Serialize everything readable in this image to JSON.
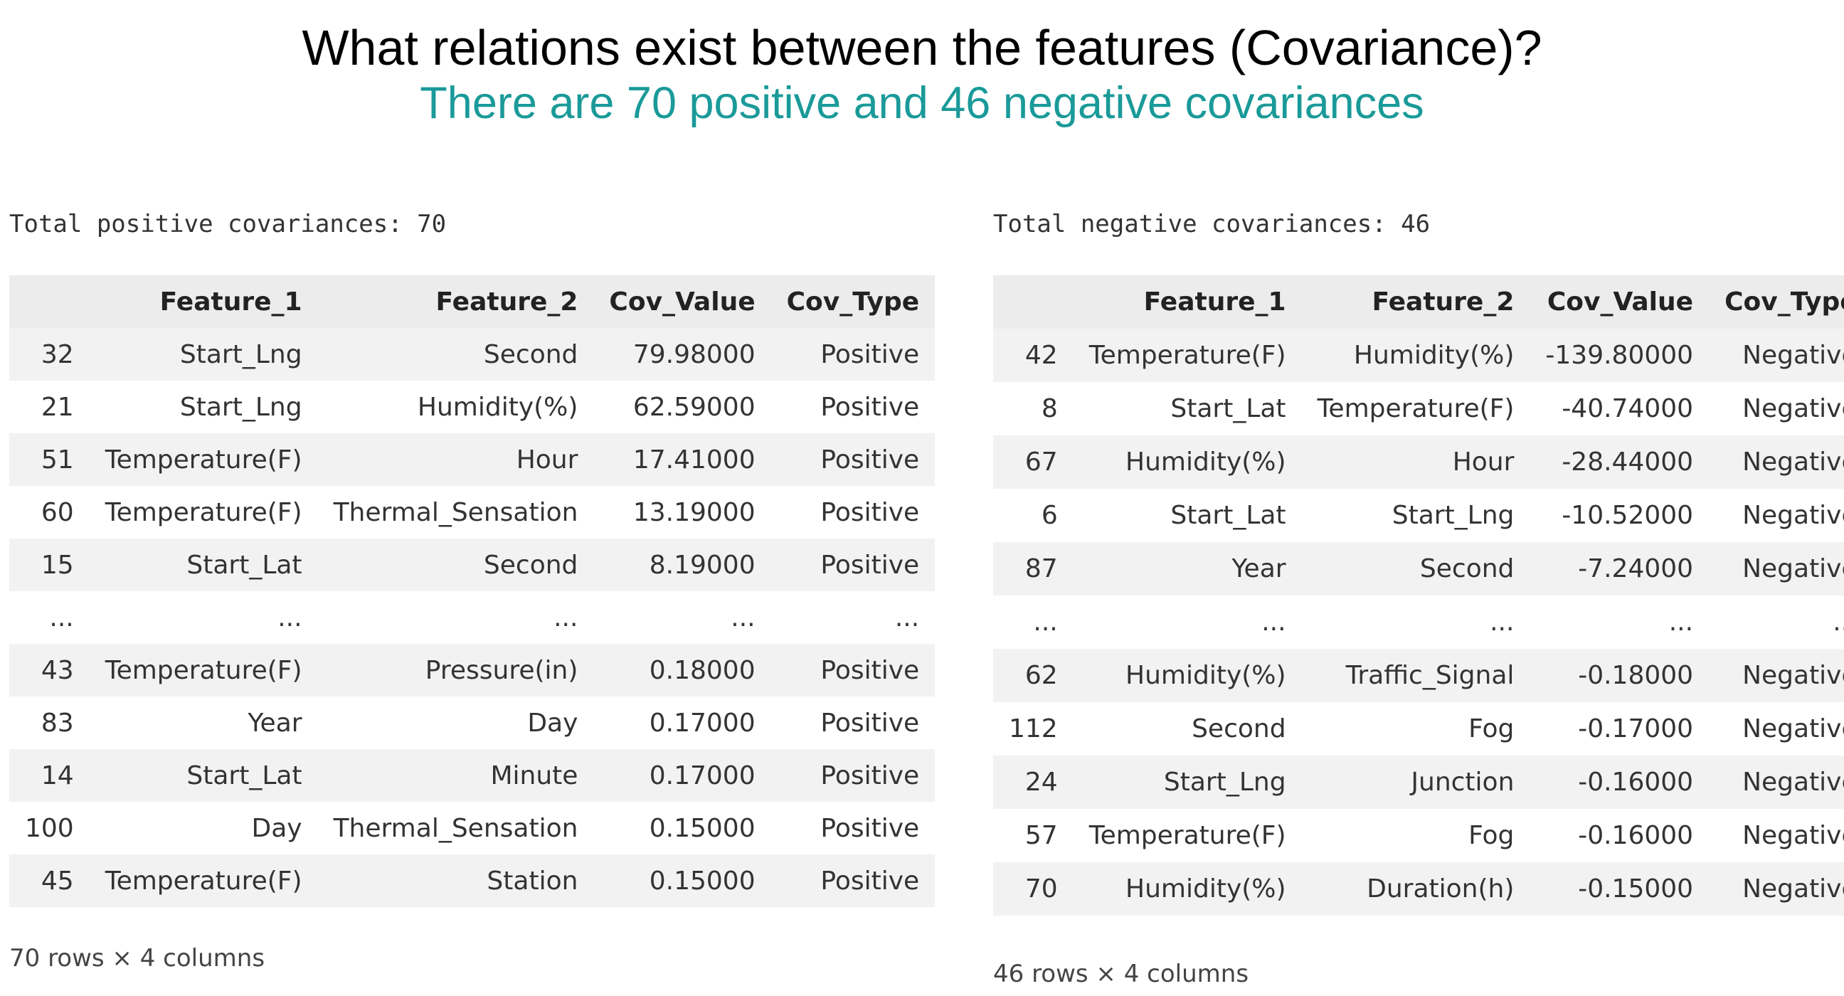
{
  "header": {
    "title": "What relations exist between the features (Covariance)?",
    "subtitle": "There are 70 positive and 46 negative covariances",
    "subtitle_color": "#1a9a99"
  },
  "positive": {
    "total_label": "Total positive covariances: 70",
    "columns": [
      "",
      "Feature_1",
      "Feature_2",
      "Cov_Value",
      "Cov_Type"
    ],
    "rows": [
      [
        "32",
        "Start_Lng",
        "Second",
        "79.98000",
        "Positive"
      ],
      [
        "21",
        "Start_Lng",
        "Humidity(%)",
        "62.59000",
        "Positive"
      ],
      [
        "51",
        "Temperature(F)",
        "Hour",
        "17.41000",
        "Positive"
      ],
      [
        "60",
        "Temperature(F)",
        "Thermal_Sensation",
        "13.19000",
        "Positive"
      ],
      [
        "15",
        "Start_Lat",
        "Second",
        "8.19000",
        "Positive"
      ],
      [
        "...",
        "...",
        "...",
        "...",
        "..."
      ],
      [
        "43",
        "Temperature(F)",
        "Pressure(in)",
        "0.18000",
        "Positive"
      ],
      [
        "83",
        "Year",
        "Day",
        "0.17000",
        "Positive"
      ],
      [
        "14",
        "Start_Lat",
        "Minute",
        "0.17000",
        "Positive"
      ],
      [
        "100",
        "Day",
        "Thermal_Sensation",
        "0.15000",
        "Positive"
      ],
      [
        "45",
        "Temperature(F)",
        "Station",
        "0.15000",
        "Positive"
      ]
    ],
    "shape_label": "70 rows × 4 columns"
  },
  "negative": {
    "total_label": "Total negative covariances: 46",
    "columns": [
      "",
      "Feature_1",
      "Feature_2",
      "Cov_Value",
      "Cov_Type"
    ],
    "rows": [
      [
        "42",
        "Temperature(F)",
        "Humidity(%)",
        "-139.80000",
        "Negative"
      ],
      [
        "8",
        "Start_Lat",
        "Temperature(F)",
        "-40.74000",
        "Negative"
      ],
      [
        "67",
        "Humidity(%)",
        "Hour",
        "-28.44000",
        "Negative"
      ],
      [
        "6",
        "Start_Lat",
        "Start_Lng",
        "-10.52000",
        "Negative"
      ],
      [
        "87",
        "Year",
        "Second",
        "-7.24000",
        "Negative"
      ],
      [
        "...",
        "...",
        "...",
        "...",
        "..."
      ],
      [
        "62",
        "Humidity(%)",
        "Traffic_Signal",
        "-0.18000",
        "Negative"
      ],
      [
        "112",
        "Second",
        "Fog",
        "-0.17000",
        "Negative"
      ],
      [
        "24",
        "Start_Lng",
        "Junction",
        "-0.16000",
        "Negative"
      ],
      [
        "57",
        "Temperature(F)",
        "Fog",
        "-0.16000",
        "Negative"
      ],
      [
        "70",
        "Humidity(%)",
        "Duration(h)",
        "-0.15000",
        "Negative"
      ]
    ],
    "shape_label": "46 rows × 4 columns"
  }
}
